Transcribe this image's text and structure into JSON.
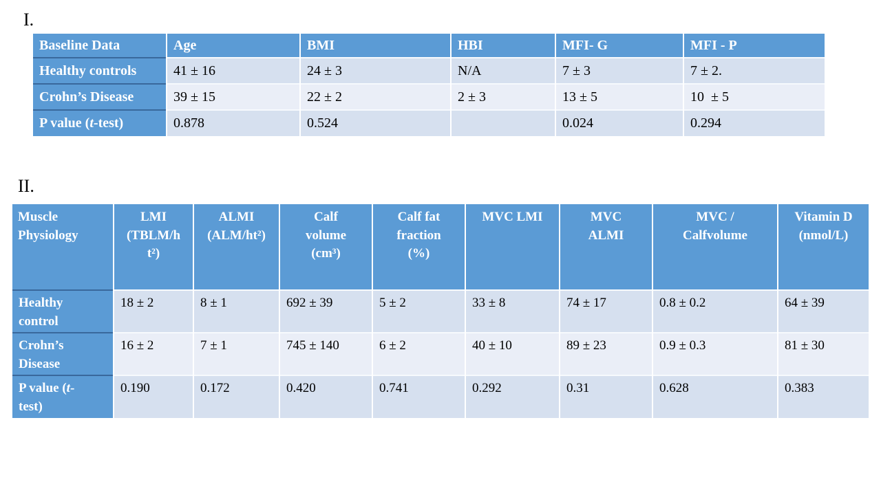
{
  "colors": {
    "table_header_blue": "#5b9bd5",
    "row_band_dark": "#d6e0ef",
    "row_band_light": "#eaeef7",
    "header_text": "#ffffff",
    "body_text": "#000000"
  },
  "section1": {
    "label": "I.",
    "table": {
      "headers": [
        "Baseline Data",
        "Age",
        "BMI",
        "HBI",
        "MFI- G",
        "MFI - P"
      ],
      "rows": [
        {
          "label": "Healthy controls",
          "values": [
            "41 ± 16",
            "24 ± 3",
            "N/A",
            "7 ± 3",
            "7 ± 2."
          ]
        },
        {
          "label": "Crohn’s Disease",
          "values": [
            "39 ± 15",
            "22 ± 2",
            "2 ± 3",
            "13 ± 5",
            "10  ± 5"
          ]
        },
        {
          "label": "P value (*t*-test)",
          "values": [
            "0.878",
            "0.524",
            "",
            "0.024",
            "0.294"
          ]
        }
      ]
    }
  },
  "section2": {
    "label": "II.",
    "table": {
      "headers": [
        "Muscle\nPhysiology",
        "LMI\n(TBLM/h\nt²)",
        "ALMI\n(ALM/ht²)",
        "Calf\nvolume\n(cm³)",
        "Calf fat\nfraction\n(%)",
        "MVC LMI",
        "MVC\nALMI",
        "MVC /\nCalfvolume",
        "Vitamin D\n(nmol/L)"
      ],
      "rows": [
        {
          "label": "Healthy\ncontrol",
          "values": [
            "18 ± 2",
            "8 ± 1",
            "692 ± 39",
            "5 ± 2",
            "33 ± 8",
            "74 ± 17",
            "0.8 ± 0.2",
            "64 ± 39"
          ]
        },
        {
          "label": "Crohn’s\nDisease",
          "values": [
            "16 ± 2",
            "7 ± 1",
            "745 ± 140",
            "6 ± 2",
            "40 ± 10",
            "89 ± 23",
            "0.9 ± 0.3",
            "81 ± 30"
          ]
        },
        {
          "label": "P value (*t*-\ntest)",
          "values": [
            "0.190",
            "0.172",
            "0.420",
            "0.741",
            "0.292",
            "0.31",
            "0.628",
            "0.383"
          ]
        }
      ]
    }
  }
}
